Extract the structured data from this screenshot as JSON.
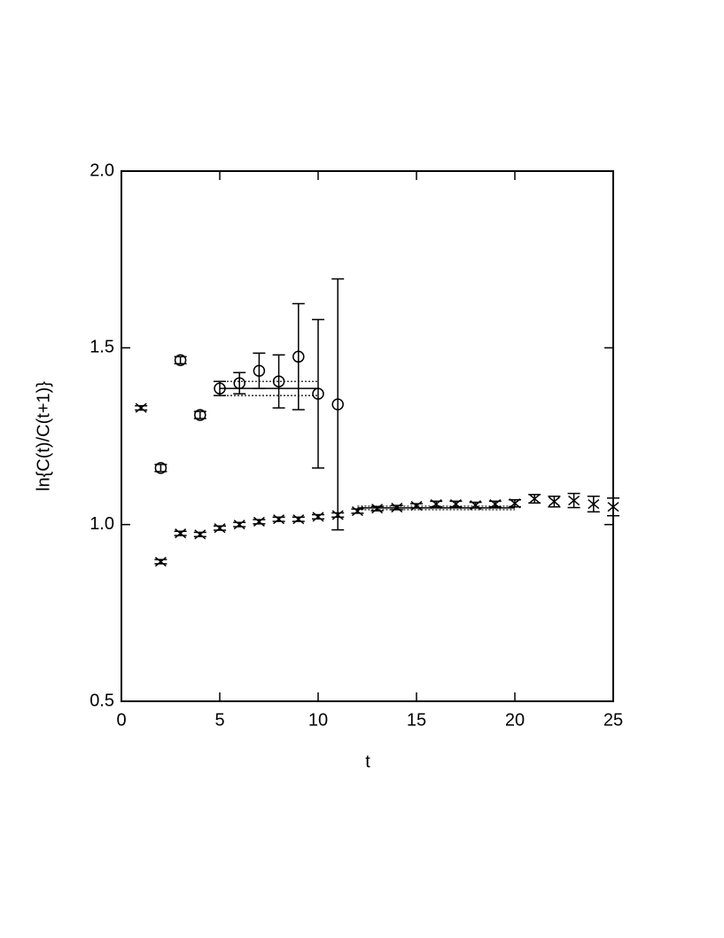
{
  "chart_data": {
    "type": "scatter",
    "xlabel": "t",
    "ylabel": "ln{C(t)/C(t+1)}",
    "xlim": [
      0,
      25
    ],
    "ylim": [
      0.5,
      2.0
    ],
    "xticks": [
      0,
      5,
      10,
      15,
      20,
      25
    ],
    "yticks": [
      {
        "value": 0.5,
        "label": "0.5"
      },
      {
        "value": 1.0,
        "label": "1.0"
      },
      {
        "value": 1.5,
        "label": "1.5"
      },
      {
        "value": 2.0,
        "label": "2.0"
      }
    ],
    "series": [
      {
        "marker": "circle",
        "color": "#000000",
        "x": [
          2,
          3,
          4,
          5,
          6,
          7,
          8,
          9,
          10,
          11
        ],
        "values": [
          1.16,
          1.465,
          1.31,
          1.385,
          1.4,
          1.435,
          1.405,
          1.475,
          1.37,
          1.34
        ],
        "errors": [
          0.01,
          0.01,
          0.01,
          0.02,
          0.03,
          0.05,
          0.075,
          0.15,
          0.21,
          0.355
        ]
      },
      {
        "marker": "cross",
        "color": "#000000",
        "x": [
          1,
          2,
          3,
          4,
          5,
          6,
          7,
          8,
          9,
          10,
          11,
          12,
          13,
          14,
          15,
          16,
          17,
          18,
          19,
          20,
          21,
          22,
          23,
          24,
          25
        ],
        "values": [
          1.33,
          0.895,
          0.975,
          0.972,
          0.99,
          1.0,
          1.008,
          1.015,
          1.015,
          1.022,
          1.027,
          1.038,
          1.045,
          1.048,
          1.053,
          1.058,
          1.058,
          1.055,
          1.058,
          1.06,
          1.073,
          1.065,
          1.068,
          1.058,
          1.05
        ],
        "errors": [
          0.006,
          0.006,
          0.006,
          0.006,
          0.006,
          0.006,
          0.006,
          0.006,
          0.006,
          0.006,
          0.006,
          0.006,
          0.006,
          0.006,
          0.006,
          0.008,
          0.008,
          0.008,
          0.008,
          0.01,
          0.012,
          0.015,
          0.02,
          0.022,
          0.025
        ]
      }
    ],
    "fits": [
      {
        "x": [
          5,
          10
        ],
        "value": 1.385,
        "error": 0.02
      },
      {
        "x": [
          12,
          20
        ],
        "value": 1.047,
        "error": 0.005
      }
    ]
  }
}
